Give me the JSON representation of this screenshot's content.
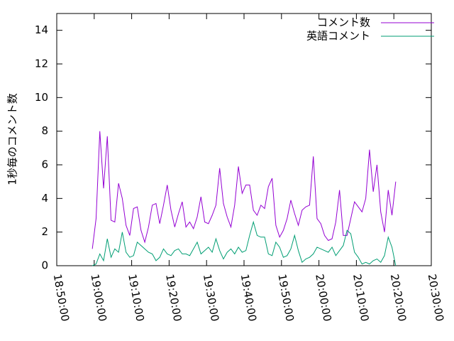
{
  "chart_data": {
    "type": "line",
    "ylabel": "1秒毎のコメント数",
    "x": [
      "18:59:30",
      "19:00:30",
      "19:01:30",
      "19:02:30",
      "19:03:30",
      "19:04:30",
      "19:05:30",
      "19:06:30",
      "19:07:30",
      "19:08:30",
      "19:09:30",
      "19:10:30",
      "19:11:30",
      "19:12:30",
      "19:13:30",
      "19:14:30",
      "19:15:30",
      "19:16:30",
      "19:17:30",
      "19:18:30",
      "19:19:30",
      "19:20:30",
      "19:21:30",
      "19:22:30",
      "19:23:30",
      "19:24:30",
      "19:25:30",
      "19:26:30",
      "19:27:30",
      "19:28:30",
      "19:29:30",
      "19:30:30",
      "19:31:30",
      "19:32:30",
      "19:33:30",
      "19:34:30",
      "19:35:30",
      "19:36:30",
      "19:37:30",
      "19:38:30",
      "19:39:30",
      "19:40:30",
      "19:41:30",
      "19:42:30",
      "19:43:30",
      "19:44:30",
      "19:45:30",
      "19:46:30",
      "19:47:30",
      "19:48:30",
      "19:49:30",
      "19:50:30",
      "19:51:30",
      "19:52:30",
      "19:53:30",
      "19:54:30",
      "19:55:30",
      "19:56:30",
      "19:57:30",
      "19:58:30",
      "19:59:30",
      "20:00:30",
      "20:01:30",
      "20:02:30",
      "20:03:30",
      "20:04:30",
      "20:05:30",
      "20:06:30",
      "20:07:30",
      "20:08:30",
      "20:09:30",
      "20:10:30",
      "20:11:30",
      "20:12:30",
      "20:13:30",
      "20:14:30",
      "20:15:30",
      "20:16:30",
      "20:17:30",
      "20:18:30",
      "20:19:30",
      "20:20:30"
    ],
    "series": [
      {
        "name": "コメント数",
        "color": "#9400d3",
        "values": [
          1.0,
          2.8,
          8.0,
          4.6,
          7.7,
          2.7,
          2.6,
          4.9,
          4.0,
          2.4,
          1.8,
          3.4,
          3.5,
          2.1,
          1.4,
          2.3,
          3.6,
          3.7,
          2.5,
          3.6,
          4.8,
          3.3,
          2.3,
          3.1,
          3.8,
          2.3,
          2.6,
          2.2,
          2.9,
          4.1,
          2.6,
          2.5,
          3.0,
          3.6,
          5.8,
          3.7,
          2.9,
          2.3,
          3.6,
          5.9,
          4.3,
          4.8,
          4.8,
          3.3,
          3.0,
          3.6,
          3.4,
          4.7,
          5.2,
          2.4,
          1.7,
          2.1,
          2.8,
          3.9,
          3.1,
          2.4,
          3.3,
          3.5,
          3.6,
          6.5,
          2.8,
          2.5,
          1.8,
          1.5,
          1.6,
          2.6,
          4.5,
          1.8,
          1.8,
          2.8,
          3.8,
          3.5,
          3.2,
          4.0,
          6.9,
          4.4,
          6.0,
          3.2,
          2.0,
          4.5,
          3.0,
          5.0
        ]
      },
      {
        "name": "英語コメント",
        "color": "#009e73",
        "values": [
          0.0,
          0.1,
          0.7,
          0.3,
          1.6,
          0.5,
          1.0,
          0.8,
          2.0,
          0.8,
          0.5,
          0.6,
          1.4,
          1.2,
          1.0,
          0.8,
          0.7,
          0.3,
          0.5,
          1.0,
          0.7,
          0.6,
          0.9,
          1.0,
          0.7,
          0.7,
          0.6,
          1.0,
          1.4,
          0.7,
          0.9,
          1.1,
          0.8,
          1.6,
          0.9,
          0.4,
          0.8,
          1.0,
          0.7,
          1.1,
          0.8,
          0.9,
          1.8,
          2.6,
          1.8,
          1.7,
          1.7,
          0.7,
          0.6,
          1.4,
          1.1,
          0.5,
          0.6,
          1.0,
          1.8,
          0.9,
          0.2,
          0.4,
          0.5,
          0.7,
          1.1,
          1.0,
          0.9,
          0.8,
          1.1,
          0.6,
          0.9,
          1.2,
          2.1,
          1.9,
          0.8,
          0.5,
          0.1,
          0.2,
          0.1,
          0.3,
          0.4,
          0.2,
          0.6,
          1.7,
          1.1,
          0.0
        ]
      }
    ],
    "xlim": [
      "18:50:00",
      "20:30:00"
    ],
    "xticks": [
      "18:50:00",
      "19:00:00",
      "19:10:00",
      "19:20:00",
      "19:30:00",
      "19:40:00",
      "19:50:00",
      "20:00:00",
      "20:10:00",
      "20:20:00",
      "20:30:00"
    ],
    "ylim": [
      0,
      15
    ],
    "yticks": [
      0,
      2,
      4,
      6,
      8,
      10,
      12,
      14
    ],
    "legend": "top-right",
    "grid": false
  }
}
